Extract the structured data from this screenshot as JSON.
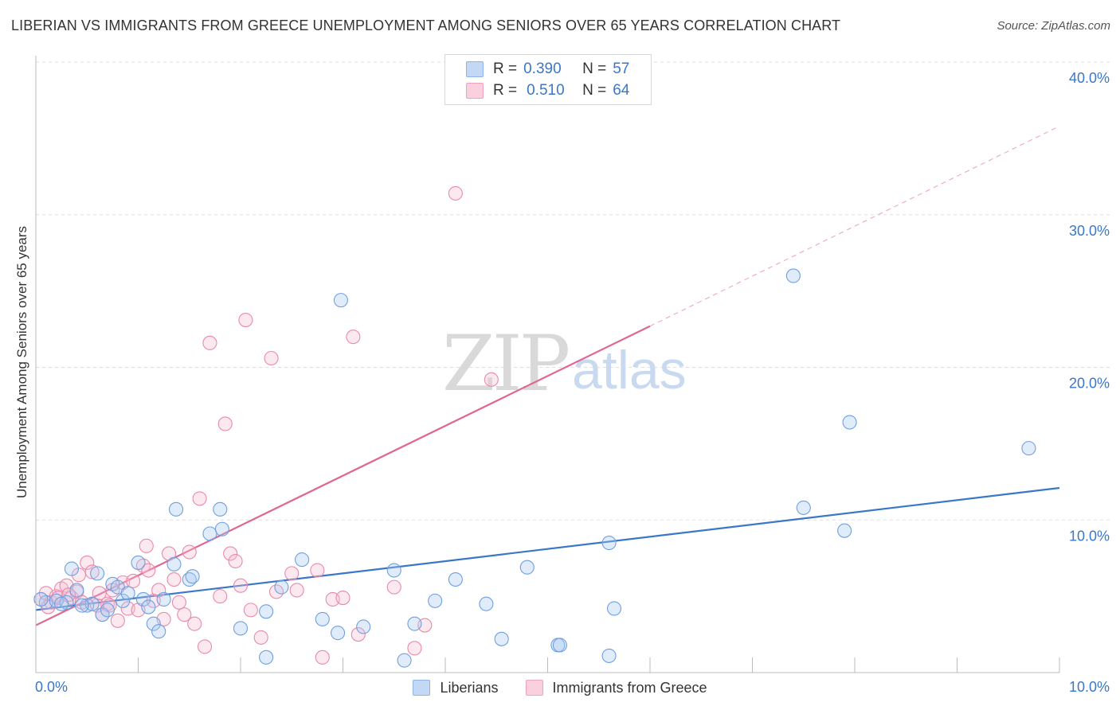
{
  "title": "LIBERIAN VS IMMIGRANTS FROM GREECE UNEMPLOYMENT AMONG SENIORS OVER 65 YEARS CORRELATION CHART",
  "source": "Source: ZipAtlas.com",
  "watermark": {
    "zip": "ZIP",
    "atlas": "atlas"
  },
  "legend_top": [
    {
      "r_label": "R =",
      "r_value": "0.390",
      "n_label": "N =",
      "n_value": "57"
    },
    {
      "r_label": "R =",
      "r_value": "0.510",
      "n_label": "N =",
      "n_value": "64"
    }
  ],
  "legend_bottom": [
    "Liberians",
    "Immigrants from Greece"
  ],
  "colors": {
    "blue_fill": "#a9c8f2",
    "blue_stroke": "#6f9fe0",
    "blue_line": "#3a77c9",
    "pink_fill": "#f7bcd0",
    "pink_stroke": "#e88aab",
    "pink_line": "#e06590",
    "tick_text": "#3a77c9",
    "grid": "#dddddd"
  },
  "chart_data": {
    "type": "scatter",
    "title": "LIBERIAN VS IMMIGRANTS FROM GREECE UNEMPLOYMENT AMONG SENIORS OVER 65 YEARS CORRELATION CHART",
    "xlabel": "",
    "ylabel": "Unemployment Among Seniors over 65 years",
    "xlim": [
      0,
      10
    ],
    "ylim": [
      0,
      40
    ],
    "x_tick_labels": [
      "0.0%",
      "10.0%"
    ],
    "y_tick_labels": [
      "10.0%",
      "20.0%",
      "30.0%",
      "40.0%"
    ],
    "y_ticks": [
      10,
      20,
      30,
      40
    ],
    "grid": true,
    "series": [
      {
        "name": "Liberians",
        "color": "#6f9fe0",
        "trend": {
          "x": [
            0,
            10
          ],
          "y": [
            4.1,
            12.1
          ]
        },
        "points": [
          [
            0.1,
            4.6
          ],
          [
            0.2,
            4.7
          ],
          [
            0.3,
            4.6
          ],
          [
            0.35,
            6.8
          ],
          [
            0.4,
            5.4
          ],
          [
            0.5,
            4.4
          ],
          [
            0.55,
            4.5
          ],
          [
            0.6,
            6.5
          ],
          [
            0.65,
            3.8
          ],
          [
            0.7,
            4.1
          ],
          [
            0.75,
            5.8
          ],
          [
            0.8,
            5.6
          ],
          [
            0.85,
            4.7
          ],
          [
            0.9,
            5.2
          ],
          [
            1.0,
            7.2
          ],
          [
            1.05,
            4.8
          ],
          [
            1.1,
            4.3
          ],
          [
            1.15,
            3.2
          ],
          [
            1.2,
            2.7
          ],
          [
            1.25,
            4.8
          ],
          [
            1.35,
            7.1
          ],
          [
            1.37,
            10.7
          ],
          [
            1.5,
            6.1
          ],
          [
            1.53,
            6.3
          ],
          [
            1.7,
            9.1
          ],
          [
            1.8,
            10.7
          ],
          [
            1.82,
            9.4
          ],
          [
            2.0,
            2.9
          ],
          [
            2.25,
            4.0
          ],
          [
            2.25,
            1.0
          ],
          [
            2.4,
            5.6
          ],
          [
            2.6,
            7.4
          ],
          [
            2.8,
            3.5
          ],
          [
            2.95,
            2.6
          ],
          [
            2.98,
            24.4
          ],
          [
            3.2,
            3.0
          ],
          [
            3.5,
            6.7
          ],
          [
            3.6,
            0.8
          ],
          [
            3.7,
            3.2
          ],
          [
            3.9,
            4.7
          ],
          [
            4.1,
            6.1
          ],
          [
            4.4,
            4.5
          ],
          [
            4.55,
            2.2
          ],
          [
            4.8,
            6.9
          ],
          [
            5.1,
            1.8
          ],
          [
            5.12,
            1.8
          ],
          [
            5.6,
            8.5
          ],
          [
            5.6,
            1.1
          ],
          [
            5.65,
            4.2
          ],
          [
            7.4,
            26.0
          ],
          [
            7.5,
            10.8
          ],
          [
            7.9,
            9.3
          ],
          [
            7.95,
            16.4
          ],
          [
            9.7,
            14.7
          ],
          [
            0.05,
            4.8
          ],
          [
            0.25,
            4.5
          ],
          [
            0.45,
            4.4
          ]
        ]
      },
      {
        "name": "Immigrants from Greece",
        "color": "#e88aab",
        "trend": {
          "x": [
            0,
            6
          ],
          "y": [
            3.1,
            22.7
          ]
        },
        "trend_extension": {
          "x": [
            6,
            10
          ],
          "y": [
            22.7,
            35.8
          ]
        },
        "points": [
          [
            0.05,
            4.8
          ],
          [
            0.1,
            5.2
          ],
          [
            0.15,
            4.6
          ],
          [
            0.2,
            5.0
          ],
          [
            0.25,
            5.5
          ],
          [
            0.3,
            5.7
          ],
          [
            0.35,
            4.9
          ],
          [
            0.4,
            5.3
          ],
          [
            0.45,
            4.6
          ],
          [
            0.5,
            7.2
          ],
          [
            0.55,
            6.6
          ],
          [
            0.6,
            4.4
          ],
          [
            0.65,
            3.8
          ],
          [
            0.7,
            4.5
          ],
          [
            0.75,
            5.4
          ],
          [
            0.8,
            3.4
          ],
          [
            0.85,
            5.9
          ],
          [
            0.9,
            4.2
          ],
          [
            0.95,
            6.0
          ],
          [
            1.0,
            4.1
          ],
          [
            1.05,
            7.0
          ],
          [
            1.08,
            8.3
          ],
          [
            1.1,
            6.7
          ],
          [
            1.15,
            4.7
          ],
          [
            1.2,
            5.4
          ],
          [
            1.25,
            3.5
          ],
          [
            1.3,
            7.8
          ],
          [
            1.35,
            6.1
          ],
          [
            1.4,
            4.6
          ],
          [
            1.45,
            3.8
          ],
          [
            1.5,
            7.9
          ],
          [
            1.55,
            3.2
          ],
          [
            1.6,
            11.4
          ],
          [
            1.65,
            1.7
          ],
          [
            1.7,
            21.6
          ],
          [
            1.8,
            5.0
          ],
          [
            1.85,
            16.3
          ],
          [
            1.9,
            7.8
          ],
          [
            1.95,
            7.3
          ],
          [
            2.0,
            5.7
          ],
          [
            2.05,
            23.1
          ],
          [
            2.1,
            4.1
          ],
          [
            2.2,
            2.3
          ],
          [
            2.3,
            20.6
          ],
          [
            2.35,
            5.3
          ],
          [
            2.5,
            6.5
          ],
          [
            2.55,
            5.4
          ],
          [
            2.75,
            6.7
          ],
          [
            2.8,
            1.0
          ],
          [
            2.9,
            4.8
          ],
          [
            3.0,
            4.9
          ],
          [
            3.1,
            22.0
          ],
          [
            3.15,
            2.5
          ],
          [
            3.5,
            5.6
          ],
          [
            3.7,
            1.6
          ],
          [
            3.8,
            3.1
          ],
          [
            4.1,
            31.4
          ],
          [
            4.45,
            19.2
          ],
          [
            0.12,
            4.3
          ],
          [
            0.22,
            4.9
          ],
          [
            0.32,
            5.1
          ],
          [
            0.42,
            6.4
          ],
          [
            0.62,
            5.2
          ],
          [
            0.72,
            4.4
          ]
        ]
      }
    ]
  },
  "axis_labels": {
    "y_ticks": [
      "10.0%",
      "20.0%",
      "30.0%",
      "40.0%"
    ],
    "x_left": "0.0%",
    "x_right": "10.0%"
  }
}
